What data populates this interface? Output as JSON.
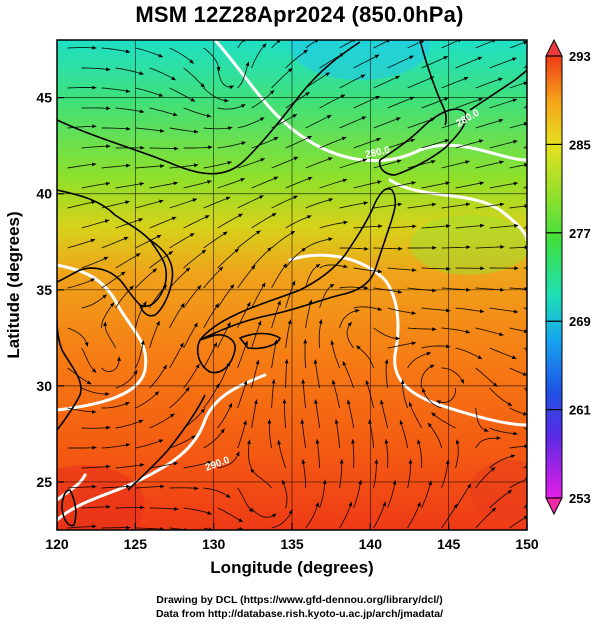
{
  "title": "MSM 12Z28Apr2024 (850.0hPa)",
  "x_axis": {
    "label": "Longitude (degrees)",
    "ticks": [
      "120",
      "125",
      "130",
      "135",
      "140",
      "145",
      "150"
    ],
    "range": [
      120,
      150
    ]
  },
  "y_axis": {
    "label": "Latitude  (degrees)",
    "ticks": [
      "25",
      "30",
      "35",
      "40",
      "45"
    ],
    "range": [
      22.5,
      48
    ]
  },
  "colorbar": {
    "ticks": [
      "253",
      "261",
      "269",
      "277",
      "285",
      "293"
    ],
    "range": [
      253,
      293
    ]
  },
  "contour_labels": [
    {
      "text": "280.0",
      "lon": 140.5,
      "lat": 42.0,
      "angle": -12
    },
    {
      "text": "280.0",
      "lon": 146.3,
      "lat": 43.8,
      "angle": -30
    },
    {
      "text": "290.0",
      "lon": 130.3,
      "lat": 25.8,
      "angle": -20
    }
  ],
  "credits": {
    "line1": "Drawing by DCL (https://www.gfd-dennou.org/library/dcl/)",
    "line2": "Data from http://database.rish.kyoto-u.ac.jp/arch/jmadata/"
  }
}
